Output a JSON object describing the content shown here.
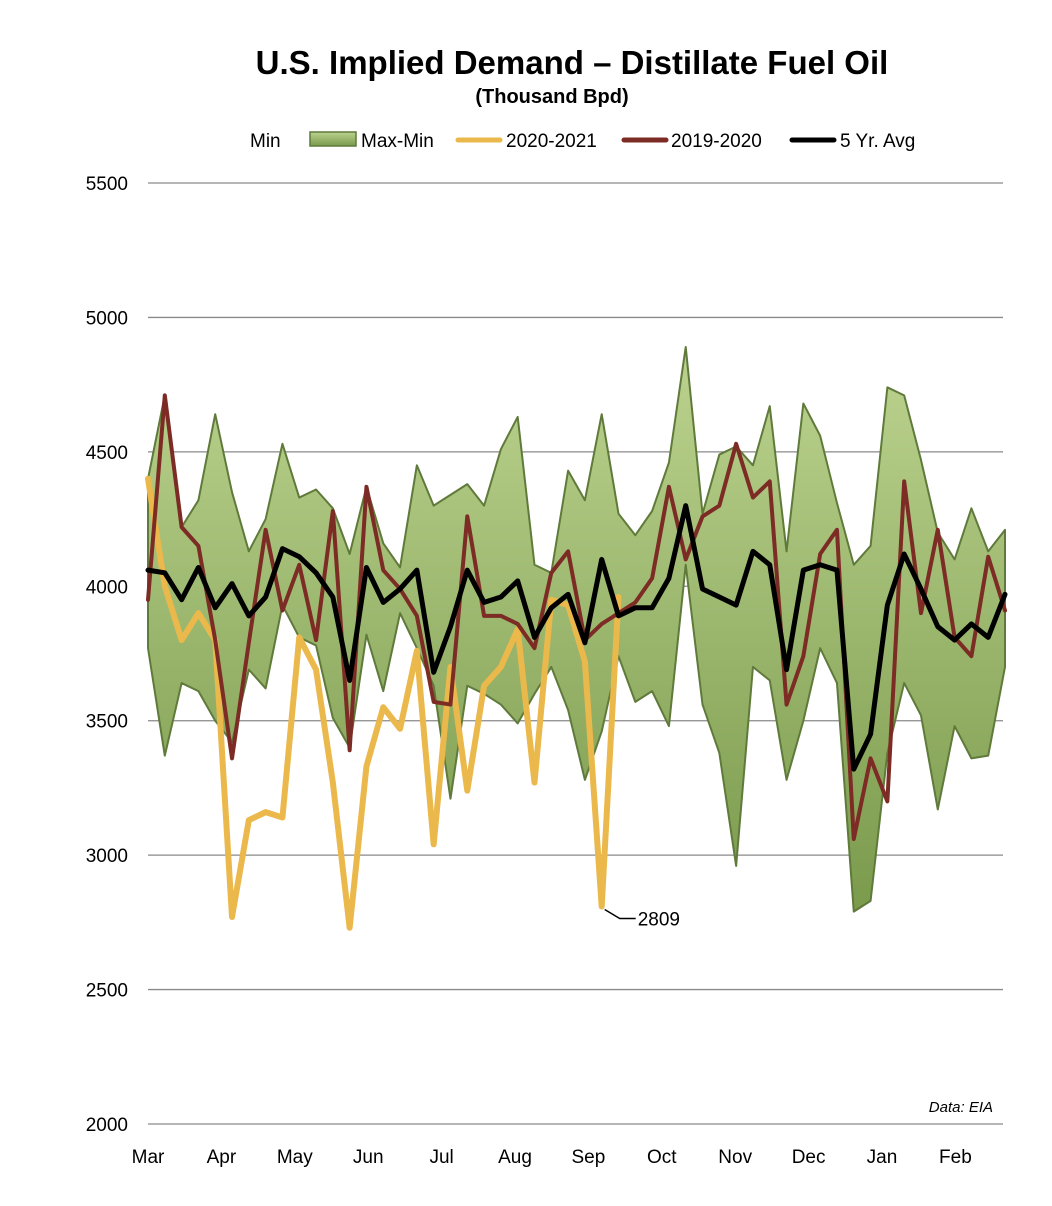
{
  "chart_data": {
    "type": "line",
    "title": "U.S. Implied Demand – Distillate Fuel Oil",
    "subtitle": "(Thousand Bpd)",
    "source_note": "Data: EIA",
    "ylim": [
      2000,
      5500
    ],
    "yticks": [
      2000,
      2500,
      3000,
      3500,
      4000,
      4500,
      5000,
      5500
    ],
    "grid": true,
    "legend_placement": "top",
    "x_tick_labels": [
      "Mar",
      "Apr",
      "May",
      "Jun",
      "Jul",
      "Aug",
      "Sep",
      "Oct",
      "Nov",
      "Dec",
      "Jan",
      "Feb"
    ],
    "x_unit": "week",
    "band": {
      "legend_min": "Min",
      "legend_range": "Max-Min",
      "color_top": "#bcd38f",
      "color_bottom": "#7a9a4c",
      "edge_color": "#5f7a3a",
      "max": [
        4400,
        4710,
        4220,
        4320,
        4640,
        4350,
        4130,
        4250,
        4530,
        4330,
        4360,
        4290,
        4120,
        4370,
        4160,
        4070,
        4450,
        4300,
        4340,
        4380,
        4300,
        4510,
        4630,
        4080,
        4050,
        4430,
        4320,
        4640,
        4270,
        4190,
        4280,
        4460,
        4890,
        4270,
        4490,
        4520,
        4450,
        4670,
        4130,
        4680,
        4560,
        4310,
        4080,
        4150,
        4740,
        4710,
        4470,
        4200,
        4100,
        4290,
        4130,
        4210
      ],
      "min": [
        3770,
        3370,
        3640,
        3610,
        3500,
        3420,
        3690,
        3620,
        3930,
        3810,
        3780,
        3510,
        3400,
        3820,
        3610,
        3900,
        3770,
        3630,
        3210,
        3630,
        3600,
        3560,
        3490,
        3600,
        3700,
        3540,
        3280,
        3460,
        3740,
        3570,
        3610,
        3480,
        4080,
        3560,
        3380,
        2960,
        3700,
        3650,
        3280,
        3500,
        3770,
        3640,
        2790,
        2830,
        3380,
        3640,
        3520,
        3170,
        3480,
        3360,
        3370,
        3700
      ]
    },
    "series": [
      {
        "name": "2020-2021",
        "color": "#ebb84c",
        "width": 6,
        "values": [
          4400,
          4000,
          3800,
          3900,
          3800,
          2770,
          3130,
          3160,
          3140,
          3810,
          3690,
          3270,
          2730,
          3330,
          3550,
          3470,
          3760,
          3040,
          3700,
          3240,
          3630,
          3700,
          3840,
          3270,
          3950,
          3930,
          3720,
          2809,
          3960
        ]
      },
      {
        "name": "2019-2020",
        "color": "#7c2b25",
        "width": 4,
        "values": [
          3950,
          4710,
          4220,
          4150,
          3800,
          3360,
          3790,
          4210,
          3910,
          4080,
          3800,
          4280,
          3390,
          4370,
          4060,
          3990,
          3890,
          3570,
          3560,
          4260,
          3890,
          3890,
          3860,
          3770,
          4050,
          4130,
          3800,
          3860,
          3900,
          3940,
          4030,
          4370,
          4100,
          4260,
          4300,
          4530,
          4330,
          4390,
          3560,
          3740,
          4120,
          4210,
          3060,
          3360,
          3200,
          4390,
          3900,
          4210,
          3810,
          3740,
          4110,
          3910
        ]
      },
      {
        "name": "5 Yr. Avg",
        "color": "#000000",
        "width": 5,
        "values": [
          4060,
          4050,
          3950,
          4070,
          3920,
          4010,
          3890,
          3960,
          4140,
          4110,
          4050,
          3960,
          3650,
          4070,
          3940,
          3990,
          4060,
          3680,
          3850,
          4060,
          3940,
          3960,
          4020,
          3810,
          3920,
          3970,
          3790,
          4100,
          3890,
          3920,
          3920,
          4030,
          4300,
          3990,
          3960,
          3930,
          4130,
          4080,
          3690,
          4060,
          4080,
          4060,
          3320,
          3450,
          3930,
          4120,
          3990,
          3850,
          3800,
          3860,
          3810,
          3970
        ]
      }
    ],
    "annotations": [
      {
        "series": "2020-2021",
        "week_index": 27,
        "label": "2809"
      }
    ]
  }
}
